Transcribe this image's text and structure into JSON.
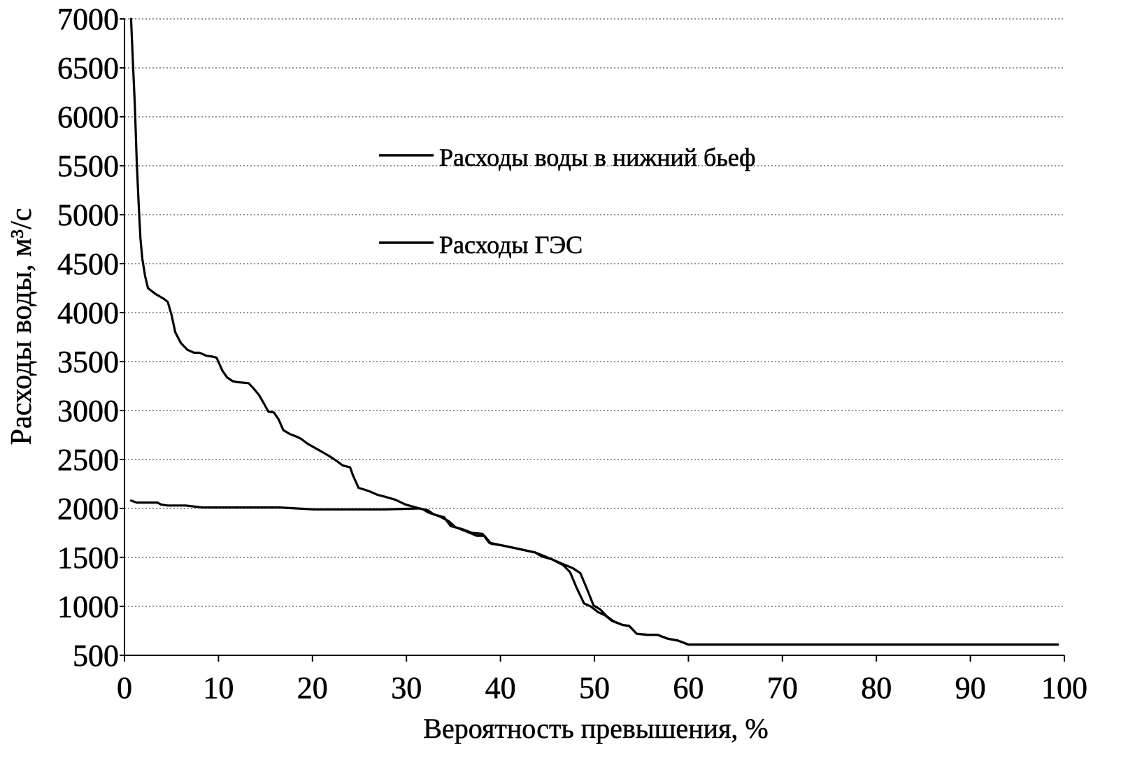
{
  "chart_data": {
    "type": "line",
    "xlabel": "Вероятность превышения, %",
    "ylabel": "Расходы воды, м³/с",
    "xlim": [
      0,
      100
    ],
    "ylim": [
      500,
      7000
    ],
    "xticks": [
      0,
      10,
      20,
      30,
      40,
      50,
      60,
      70,
      80,
      90,
      100
    ],
    "yticks": [
      500,
      1000,
      1500,
      2000,
      2500,
      3000,
      3500,
      4000,
      4500,
      5000,
      5500,
      6000,
      6500,
      7000
    ],
    "grid_y": true,
    "grid_x": false,
    "legend": "upper-center",
    "series": [
      {
        "name": "Расходы воды в нижний бьеф",
        "color": "#000000",
        "x": [
          0.7,
          0.9,
          1.1,
          1.3,
          1.5,
          1.7,
          1.9,
          2.2,
          2.5,
          3.3,
          4.2,
          4.6,
          5.0,
          5.4,
          6.0,
          6.7,
          7.4,
          8.0,
          8.7,
          9.4,
          9.8,
          10.4,
          10.9,
          11.5,
          12.0,
          13.2,
          13.7,
          14.3,
          14.9,
          15.3,
          15.9,
          16.4,
          16.9,
          17.6,
          18.4,
          18.8,
          19.5,
          20.6,
          21.7,
          22.5,
          23.2,
          24.0,
          24.3,
          24.9,
          25.6,
          26.2,
          26.9,
          27.7,
          28.8,
          29.9,
          31.0,
          31.8,
          32.3,
          33.5,
          34.5,
          35.2,
          36.5,
          37.5,
          38.3,
          39.0,
          40.3,
          41.8,
          43.7,
          44.5,
          45.5,
          46.7,
          47.7,
          48.5,
          49.2,
          49.9,
          50.6,
          51.3,
          52.0,
          53.0,
          53.7,
          54.5,
          55.6,
          56.7,
          57.8,
          58.9,
          60.0,
          61.2,
          70,
          80,
          90,
          99.3
        ],
        "y": [
          7000,
          6550,
          6120,
          5550,
          5120,
          4760,
          4550,
          4370,
          4250,
          4190,
          4140,
          4110,
          3980,
          3800,
          3690,
          3620,
          3590,
          3590,
          3560,
          3550,
          3540,
          3410,
          3340,
          3300,
          3290,
          3280,
          3230,
          3160,
          3060,
          2990,
          2980,
          2910,
          2800,
          2760,
          2730,
          2710,
          2660,
          2600,
          2540,
          2490,
          2440,
          2420,
          2340,
          2210,
          2190,
          2170,
          2140,
          2120,
          2090,
          2040,
          2010,
          1990,
          1960,
          1920,
          1870,
          1810,
          1760,
          1720,
          1720,
          1640,
          1620,
          1590,
          1550,
          1520,
          1480,
          1430,
          1390,
          1340,
          1180,
          1010,
          970,
          900,
          850,
          810,
          800,
          720,
          710,
          710,
          670,
          650,
          610,
          610,
          610,
          610,
          610,
          610
        ]
      },
      {
        "name": "Расходы ГЭС",
        "color": "#000000",
        "x": [
          0.7,
          1.3,
          3.5,
          3.9,
          4.6,
          6.5,
          8.3,
          10.6,
          16.5,
          20.2,
          24.0,
          27.7,
          31.4,
          32.3,
          32.9,
          34.0,
          34.7,
          35.9,
          37.0,
          38.1,
          38.8,
          40.3,
          41.8,
          43.7,
          44.4,
          45.5,
          46.7,
          47.4,
          48.1,
          48.9,
          49.6,
          50.4,
          51.1,
          51.9,
          53.0,
          53.7,
          54.5,
          55.6,
          56.7,
          57.8,
          58.9,
          60.0,
          61.2,
          70,
          80,
          90,
          99.3
        ],
        "y": [
          2080,
          2060,
          2060,
          2040,
          2030,
          2030,
          2010,
          2010,
          2010,
          1990,
          1990,
          1990,
          2000,
          1980,
          1940,
          1910,
          1820,
          1790,
          1750,
          1740,
          1650,
          1620,
          1590,
          1550,
          1510,
          1480,
          1420,
          1350,
          1190,
          1030,
          1000,
          940,
          910,
          850,
          810,
          800,
          720,
          710,
          710,
          670,
          650,
          610,
          610,
          610,
          610,
          610,
          610
        ]
      }
    ]
  }
}
